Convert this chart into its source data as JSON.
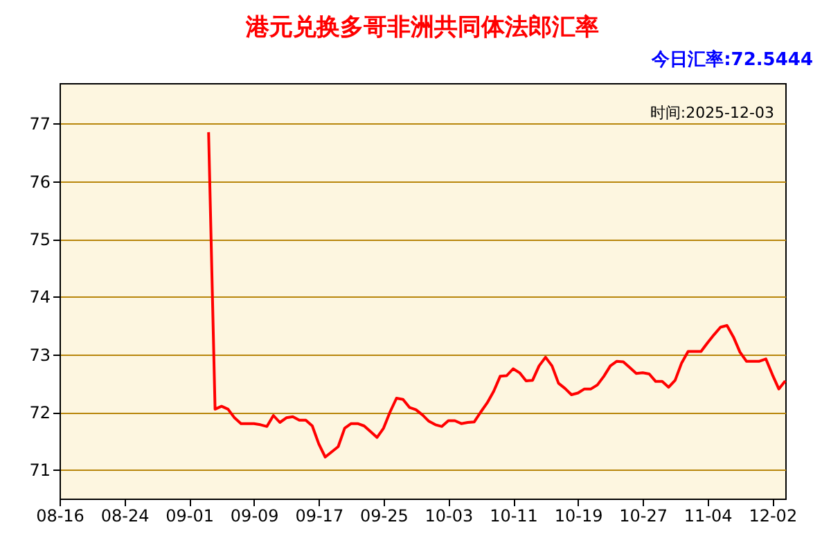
{
  "chart_data": {
    "type": "line",
    "title": "港元兑换多哥非洲共同体法郎汇率",
    "subtitle": "今日汇率:72.5444",
    "annotations": [
      "时间:2025-12-03"
    ],
    "categories": [
      "08-16",
      null,
      null,
      null,
      null,
      null,
      null,
      null,
      null,
      null,
      "08-24",
      null,
      null,
      null,
      null,
      null,
      null,
      null,
      null,
      null,
      "09-01",
      null,
      null,
      null,
      null,
      null,
      null,
      null,
      null,
      null,
      "09-09",
      null,
      null,
      null,
      null,
      null,
      null,
      null,
      null,
      null,
      "09-17",
      null,
      null,
      null,
      null,
      null,
      null,
      null,
      null,
      null,
      "09-25",
      null,
      null,
      null,
      null,
      null,
      null,
      null,
      null,
      null,
      "10-03",
      null,
      null,
      null,
      null,
      null,
      null,
      null,
      null,
      null,
      "10-11",
      null,
      null,
      null,
      null,
      null,
      null,
      null,
      null,
      null,
      "10-19",
      null,
      null,
      null,
      null,
      null,
      null,
      null,
      null,
      null,
      "10-27",
      null,
      null,
      null,
      null,
      null,
      null,
      null,
      null,
      null,
      "11-04",
      null,
      null,
      null,
      null,
      null,
      null,
      null,
      null,
      null,
      "12-02",
      null,
      null
    ],
    "series": [
      {
        "color": "#ff0000",
        "values": [
          null,
          null,
          null,
          null,
          null,
          null,
          null,
          null,
          null,
          null,
          null,
          null,
          null,
          null,
          null,
          null,
          null,
          null,
          null,
          null,
          null,
          null,
          null,
          76.85,
          72.05,
          72.1,
          72.05,
          71.9,
          71.8,
          71.8,
          71.8,
          71.78,
          71.75,
          71.94,
          71.82,
          71.9,
          71.92,
          71.86,
          71.86,
          71.76,
          71.45,
          71.22,
          71.31,
          71.4,
          71.72,
          71.8,
          71.8,
          71.76,
          71.66,
          71.56,
          71.72,
          72.0,
          72.24,
          72.22,
          72.08,
          72.04,
          71.95,
          71.84,
          71.78,
          71.75,
          71.85,
          71.85,
          71.8,
          71.82,
          71.83,
          72.0,
          72.16,
          72.36,
          72.62,
          72.63,
          72.75,
          72.68,
          72.54,
          72.55,
          72.8,
          72.95,
          72.8,
          72.5,
          72.41,
          72.3,
          72.33,
          72.4,
          72.4,
          72.47,
          72.62,
          72.8,
          72.88,
          72.87,
          72.77,
          72.67,
          72.68,
          72.66,
          72.53,
          72.53,
          72.43,
          72.55,
          72.85,
          73.05,
          73.05,
          73.05,
          73.2,
          73.34,
          73.47,
          73.5,
          73.3,
          73.04,
          72.88,
          72.88,
          72.88,
          72.92,
          72.65,
          72.4,
          72.54
        ]
      }
    ],
    "ylim": [
      70.5,
      77.7
    ],
    "yticks": [
      71,
      72,
      73,
      74,
      75,
      76,
      77
    ],
    "grid": "y",
    "legend": false,
    "marker": "none",
    "line_style": "solid"
  }
}
